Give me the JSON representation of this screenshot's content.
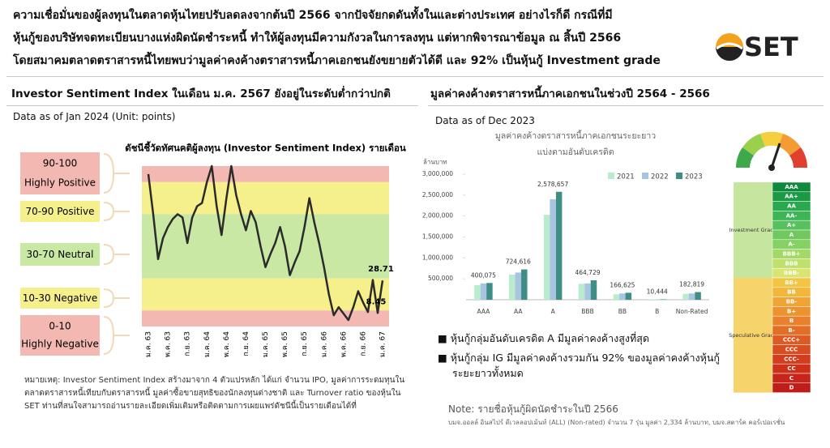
{
  "header": {
    "lines": [
      "ความเชื่อมั่นของผู้ลงทุนในตลาดหุ้นไทยปรับลดลงจากต้นปี 2566 จากปัจจัยกดดันทั้งในและต่างประเทศ อย่างไรก็ดี กรณีที่มี",
      "หุ้นกู้ของบริษัทจดทะเบียนบางแห่งผิดนัดชำระหนี้ ทำให้ผู้ลงทุนมีความกังวลในการลงทุน แต่หากพิจารณาข้อมูล ณ สิ้นปี 2566",
      "โดยสมาคมตลาดตราสารหนี้ไทยพบว่ามูลค่าคงค้างตราสารหนี้ภาคเอกชนยังขยายตัวได้ดี และ 92% เป็นหุ้นกู้ Investment grade"
    ],
    "logo": "SET"
  },
  "left": {
    "title": "Investor Sentiment Index ในเดือน ม.ค. 2567 ยังอยู่ในระดับต่ำกว่าปกติ",
    "data_as_of": "Data as of Jan 2024 (Unit: points)",
    "note": "หมายเหตุ: Investor Sentiment Index สร้างมาจาก 4 ตัวแปรหลัก ได้แก่ จำนวน IPO, มูลค่าการระดมทุนในตลาดตราสารหนี้เทียบกับตราสารหนี้ มูลค่าซื้อขายสุทธิของนักลงทุนต่างชาติ และ Turnover ratio ของหุ้นใน SET ท่านที่สนใจสามารถอ่านรายละเอียดเพิ่มเติมหรือติดตามการเผยแพร่ดัชนีนี้เป็นรายเดือนได้ที่"
  },
  "right": {
    "title": "มูลค่าคงค้างตราสารหนี้ภาคเอกชนในช่วงปี 2564 - 2566",
    "data_as_of": "Data as of  Dec 2023",
    "bullets": [
      "หุ้นกู้กลุ่มอันดับเครดิต A มีมูลค่าคงค้างสูงที่สุด",
      "หุ้นกู้กลุ่ม IG มีมูลค่าคงค้างรวมกัน 92% ของมูลค่าคงค้างหุ้นกู้ระยะยาวทั้งหมด"
    ],
    "note_title": "Note: รายชื่อหุ้นกู้ผิดนัดชำระในปี 2566",
    "note_text": "บมจ.ออลล์ อินสไปร์ ดีเวลลอปเม้นท์ (ALL) (Non-rated) จำนวน 7 รุ่น มูลค่า 2,334 ล้านบาท, บมจ.สตาร์ค คอร์เปอเรชั่น",
    "rating_scale": {
      "groups": [
        {
          "label": "Investment Grade",
          "color": "#c6e6a0",
          "ratings": [
            "AAA",
            "AA+",
            "AA",
            "AA-",
            "A+",
            "A",
            "A-",
            "BBB+",
            "BBB",
            "BBB-"
          ]
        },
        {
          "label": "Speculative Grade",
          "color": "#f6d36b",
          "ratings": [
            "BB+",
            "BB",
            "BB-",
            "B+",
            "B",
            "B-",
            "CCC+",
            "CCC",
            "CCC-",
            "CC",
            "C",
            "D"
          ]
        }
      ]
    }
  },
  "chart_data": [
    {
      "type": "line",
      "title": "ดัชนีชี้วัดทัศนคติผู้ลงทุน (Investor Sentiment Index) รายเดือน",
      "zones": [
        {
          "range": "90-100",
          "label": "Highly Positive",
          "from": 90,
          "to": 100,
          "color": "#f4b8b2"
        },
        {
          "range": "70-90",
          "label": "Positive",
          "from": 70,
          "to": 90,
          "color": "#f6f08c"
        },
        {
          "range": "30-70",
          "label": "Neutral",
          "from": 30,
          "to": 70,
          "color": "#c8e8a4"
        },
        {
          "range": "10-30",
          "label": "Negative",
          "from": 10,
          "to": 30,
          "color": "#f6f08c"
        },
        {
          "range": "0-10",
          "label": "Highly Negative",
          "from": 0,
          "to": 10,
          "color": "#f4b8b2"
        }
      ],
      "categories": [
        "ม.ค. 63",
        null,
        null,
        null,
        "พ.ค. 63",
        null,
        null,
        null,
        "ก.ย. 63",
        null,
        null,
        null,
        "ม.ค. 64",
        null,
        null,
        null,
        "พ.ค. 64",
        null,
        null,
        null,
        "ก.ย. 64",
        null,
        null,
        null,
        "ม.ค. 65",
        null,
        null,
        null,
        "พ.ค. 65",
        null,
        null,
        null,
        "ก.ย. 65",
        null,
        null,
        null,
        "ม.ค. 66",
        null,
        null,
        null,
        "พ.ค. 66",
        null,
        null,
        null,
        "ก.ย. 66",
        null,
        null,
        null,
        "ม.ค. 67"
      ],
      "values": [
        95,
        70,
        42,
        55,
        62,
        67,
        70,
        68,
        52,
        68,
        75,
        77,
        90,
        100,
        75,
        57,
        80,
        100,
        82,
        70,
        60,
        72,
        65,
        50,
        37,
        45,
        52,
        62,
        50,
        32,
        40,
        47,
        62,
        80,
        65,
        52,
        37,
        20,
        7,
        12,
        8,
        4,
        12,
        22,
        15,
        9,
        29,
        8.45,
        28.71
      ],
      "value_labels": [
        null,
        null,
        null,
        null,
        null,
        null,
        null,
        null,
        null,
        null,
        null,
        null,
        null,
        null,
        null,
        null,
        null,
        null,
        null,
        null,
        null,
        null,
        null,
        null,
        null,
        null,
        null,
        null,
        null,
        null,
        null,
        null,
        null,
        null,
        null,
        null,
        null,
        null,
        null,
        null,
        null,
        null,
        null,
        null,
        null,
        null,
        null,
        "8.45",
        "28.71"
      ],
      "color": "#2b2b2b",
      "ylim": [
        0,
        100
      ]
    },
    {
      "type": "bar",
      "title": [
        "มูลค่าคงค้างตราสารหนี้ภาคเอกชนระยะยาว",
        "แบ่งตามอันดับเครดิต"
      ],
      "y_label": "ล้านบาท",
      "categories": [
        "AAA",
        "AA",
        "A",
        "BBB",
        "BB",
        "B",
        "Non-Rated"
      ],
      "series": [
        {
          "name": "2021",
          "color": "#b9ebcd",
          "values": [
            350000,
            600000,
            2030000,
            380000,
            130000,
            9000,
            140000
          ]
        },
        {
          "name": "2022",
          "color": "#a9c3e3",
          "values": [
            390000,
            650000,
            2400000,
            390000,
            150000,
            10000,
            150000
          ]
        },
        {
          "name": "2023",
          "color": "#3e8e86",
          "values": [
            400075,
            724616,
            2578657,
            464729,
            166625,
            10444,
            182819
          ],
          "value_labels": [
            "400,075",
            "724,616",
            "2,578,657",
            "464,729",
            "166,625",
            "10,444",
            "182,819"
          ]
        }
      ],
      "ylim": [
        0,
        3000000
      ],
      "yticks": [
        {
          "value": 500000,
          "label": "500,000"
        },
        {
          "value": 1000000,
          "label": "1,000,000"
        },
        {
          "value": 1500000,
          "label": "1,500,000"
        },
        {
          "value": 2000000,
          "label": "2,000,000"
        },
        {
          "value": 2500000,
          "label": "2,500,000"
        },
        {
          "value": 3000000,
          "label": "3,000,000"
        }
      ],
      "legend": "top-right"
    }
  ]
}
